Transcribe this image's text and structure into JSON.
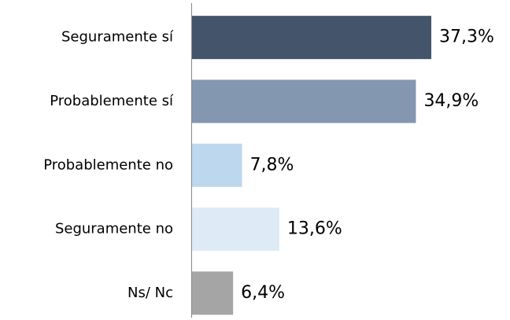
{
  "chart_data": {
    "type": "barh",
    "categories": [
      "Seguramente sí",
      "Probablemente sí",
      "Probablemente no",
      "Seguramente no",
      "Ns/ Nc"
    ],
    "values": [
      37.3,
      34.9,
      7.8,
      13.6,
      6.4
    ],
    "value_labels": [
      "37,3%",
      "34,9%",
      "7,8%",
      "13,6%",
      "6,4%"
    ],
    "colors": [
      "#44546a",
      "#8497b0",
      "#bdd7ee",
      "#deebf7",
      "#a5a5a5"
    ]
  }
}
